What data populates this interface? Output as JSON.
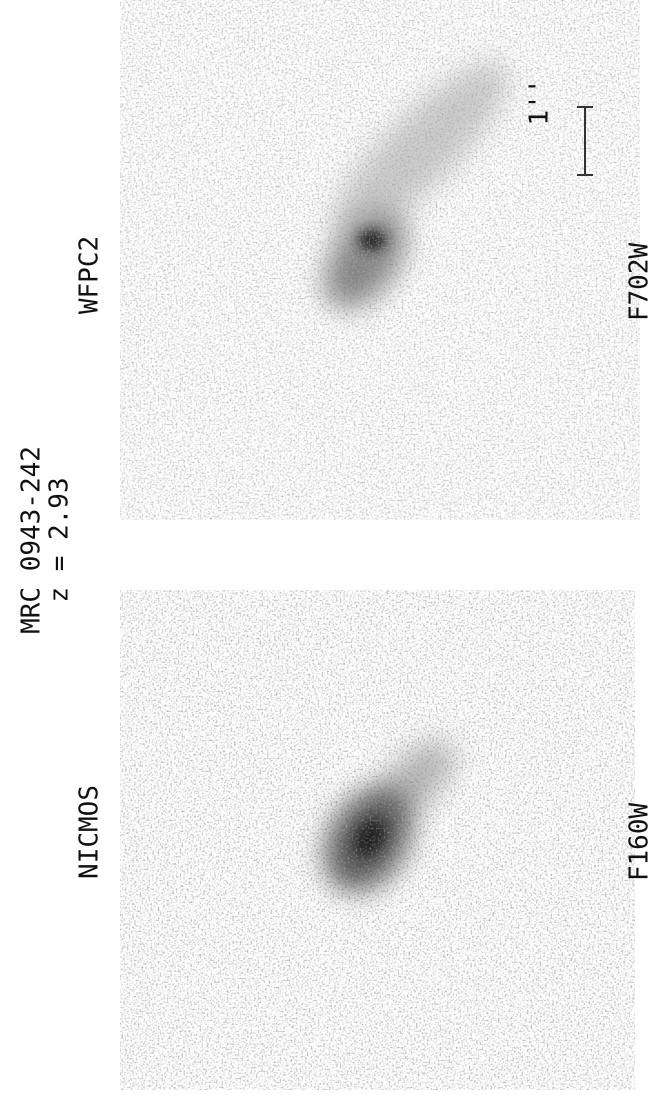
{
  "header": {
    "object": "MRC 0943-242",
    "redshift": "z = 2.93"
  },
  "panels": [
    {
      "instrument": "NICMOS",
      "filter": "F160W"
    },
    {
      "instrument": "WFPC2",
      "filter": "F702W",
      "scale_label": "1''"
    }
  ]
}
